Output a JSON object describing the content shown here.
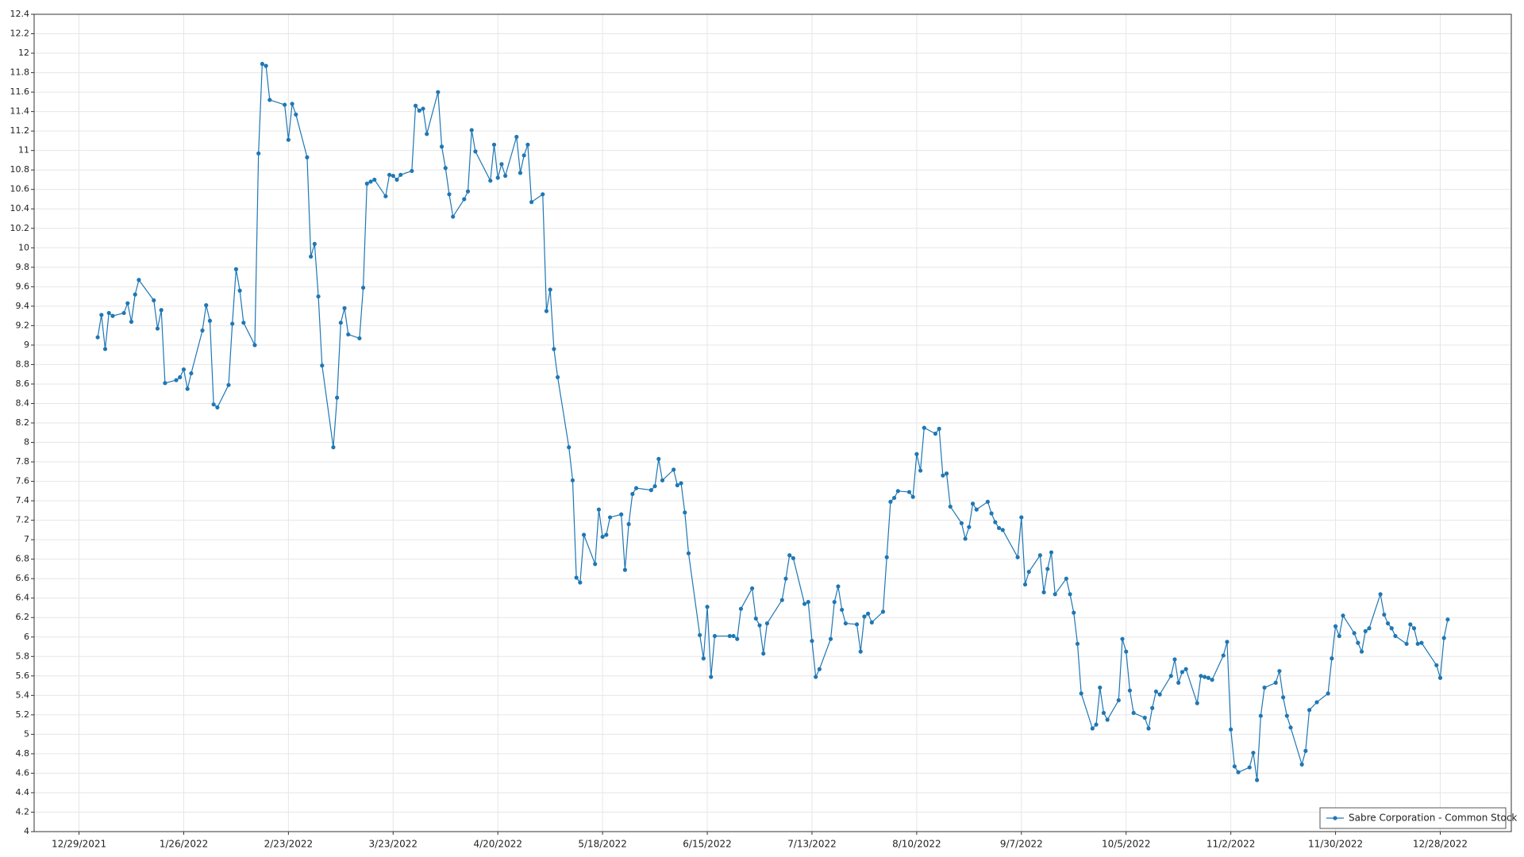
{
  "chart_data": {
    "type": "line",
    "x": [
      "1/3/2022",
      "1/4/2022",
      "1/5/2022",
      "1/6/2022",
      "1/7/2022",
      "1/10/2022",
      "1/11/2022",
      "1/12/2022",
      "1/13/2022",
      "1/14/2022",
      "1/18/2022",
      "1/19/2022",
      "1/20/2022",
      "1/21/2022",
      "1/24/2022",
      "1/25/2022",
      "1/26/2022",
      "1/27/2022",
      "1/28/2022",
      "1/31/2022",
      "2/1/2022",
      "2/2/2022",
      "2/3/2022",
      "2/4/2022",
      "2/7/2022",
      "2/8/2022",
      "2/9/2022",
      "2/10/2022",
      "2/11/2022",
      "2/14/2022",
      "2/15/2022",
      "2/16/2022",
      "2/17/2022",
      "2/18/2022",
      "2/22/2022",
      "2/23/2022",
      "2/24/2022",
      "2/25/2022",
      "2/28/2022",
      "3/1/2022",
      "3/2/2022",
      "3/3/2022",
      "3/4/2022",
      "3/7/2022",
      "3/8/2022",
      "3/9/2022",
      "3/10/2022",
      "3/11/2022",
      "3/14/2022",
      "3/15/2022",
      "3/16/2022",
      "3/17/2022",
      "3/18/2022",
      "3/21/2022",
      "3/22/2022",
      "3/23/2022",
      "3/24/2022",
      "3/25/2022",
      "3/28/2022",
      "3/29/2022",
      "3/30/2022",
      "3/31/2022",
      "4/1/2022",
      "4/4/2022",
      "4/5/2022",
      "4/6/2022",
      "4/7/2022",
      "4/8/2022",
      "4/11/2022",
      "4/12/2022",
      "4/13/2022",
      "4/14/2022",
      "4/18/2022",
      "4/19/2022",
      "4/20/2022",
      "4/21/2022",
      "4/22/2022",
      "4/25/2022",
      "4/26/2022",
      "4/27/2022",
      "4/28/2022",
      "4/29/2022",
      "5/2/2022",
      "5/3/2022",
      "5/4/2022",
      "5/5/2022",
      "5/6/2022",
      "5/9/2022",
      "5/10/2022",
      "5/11/2022",
      "5/12/2022",
      "5/13/2022",
      "5/16/2022",
      "5/17/2022",
      "5/18/2022",
      "5/19/2022",
      "5/20/2022",
      "5/23/2022",
      "5/24/2022",
      "5/25/2022",
      "5/26/2022",
      "5/27/2022",
      "5/31/2022",
      "6/1/2022",
      "6/2/2022",
      "6/3/2022",
      "6/6/2022",
      "6/7/2022",
      "6/8/2022",
      "6/9/2022",
      "6/10/2022",
      "6/13/2022",
      "6/14/2022",
      "6/15/2022",
      "6/16/2022",
      "6/17/2022",
      "6/21/2022",
      "6/22/2022",
      "6/23/2022",
      "6/24/2022",
      "6/27/2022",
      "6/28/2022",
      "6/29/2022",
      "6/30/2022",
      "7/1/2022",
      "7/5/2022",
      "7/6/2022",
      "7/7/2022",
      "7/8/2022",
      "7/11/2022",
      "7/12/2022",
      "7/13/2022",
      "7/14/2022",
      "7/15/2022",
      "7/18/2022",
      "7/19/2022",
      "7/20/2022",
      "7/21/2022",
      "7/22/2022",
      "7/25/2022",
      "7/26/2022",
      "7/27/2022",
      "7/28/2022",
      "7/29/2022",
      "8/1/2022",
      "8/2/2022",
      "8/3/2022",
      "8/4/2022",
      "8/5/2022",
      "8/8/2022",
      "8/9/2022",
      "8/10/2022",
      "8/11/2022",
      "8/12/2022",
      "8/15/2022",
      "8/16/2022",
      "8/17/2022",
      "8/18/2022",
      "8/19/2022",
      "8/22/2022",
      "8/23/2022",
      "8/24/2022",
      "8/25/2022",
      "8/26/2022",
      "8/29/2022",
      "8/30/2022",
      "8/31/2022",
      "9/1/2022",
      "9/2/2022",
      "9/6/2022",
      "9/7/2022",
      "9/8/2022",
      "9/9/2022",
      "9/12/2022",
      "9/13/2022",
      "9/14/2022",
      "9/15/2022",
      "9/16/2022",
      "9/19/2022",
      "9/20/2022",
      "9/21/2022",
      "9/22/2022",
      "9/23/2022",
      "9/26/2022",
      "9/27/2022",
      "9/28/2022",
      "9/29/2022",
      "9/30/2022",
      "10/3/2022",
      "10/4/2022",
      "10/5/2022",
      "10/6/2022",
      "10/7/2022",
      "10/10/2022",
      "10/11/2022",
      "10/12/2022",
      "10/13/2022",
      "10/14/2022",
      "10/17/2022",
      "10/18/2022",
      "10/19/2022",
      "10/20/2022",
      "10/21/2022",
      "10/24/2022",
      "10/25/2022",
      "10/26/2022",
      "10/27/2022",
      "10/28/2022",
      "10/31/2022",
      "11/1/2022",
      "11/2/2022",
      "11/3/2022",
      "11/4/2022",
      "11/7/2022",
      "11/8/2022",
      "11/9/2022",
      "11/10/2022",
      "11/11/2022",
      "11/14/2022",
      "11/15/2022",
      "11/16/2022",
      "11/17/2022",
      "11/18/2022",
      "11/21/2022",
      "11/22/2022",
      "11/23/2022",
      "11/25/2022",
      "11/28/2022",
      "11/29/2022",
      "11/30/2022",
      "12/1/2022",
      "12/2/2022",
      "12/5/2022",
      "12/6/2022",
      "12/7/2022",
      "12/8/2022",
      "12/9/2022",
      "12/12/2022",
      "12/13/2022",
      "12/14/2022",
      "12/15/2022",
      "12/16/2022",
      "12/19/2022",
      "12/20/2022",
      "12/21/2022",
      "12/22/2022",
      "12/23/2022",
      "12/27/2022",
      "12/28/2022",
      "12/29/2022",
      "12/30/2022"
    ],
    "series": [
      {
        "name": "Sabre Corporation - Common Stock",
        "color": "#1f77b4",
        "values": [
          9.08,
          9.31,
          8.96,
          9.33,
          9.3,
          9.33,
          9.43,
          9.24,
          9.52,
          9.67,
          9.46,
          9.17,
          9.36,
          8.61,
          8.64,
          8.67,
          8.75,
          8.55,
          8.71,
          9.15,
          9.41,
          9.25,
          8.39,
          8.36,
          8.59,
          9.22,
          9.78,
          9.56,
          9.23,
          9.0,
          10.97,
          11.89,
          11.87,
          11.52,
          11.47,
          11.11,
          11.48,
          11.37,
          10.93,
          9.91,
          10.04,
          9.5,
          8.79,
          7.95,
          8.46,
          9.23,
          9.38,
          9.11,
          9.07,
          9.59,
          10.66,
          10.68,
          10.7,
          10.53,
          10.75,
          10.74,
          10.7,
          10.75,
          10.79,
          11.46,
          11.41,
          11.43,
          11.17,
          11.6,
          11.04,
          10.82,
          10.55,
          10.32,
          10.5,
          10.58,
          11.21,
          10.99,
          10.69,
          11.06,
          10.72,
          10.86,
          10.74,
          11.14,
          10.77,
          10.95,
          11.06,
          10.47,
          10.55,
          9.35,
          9.57,
          8.96,
          8.67,
          7.95,
          7.61,
          6.61,
          6.56,
          7.05,
          6.75,
          7.31,
          7.03,
          7.05,
          7.23,
          7.26,
          6.69,
          7.16,
          7.47,
          7.53,
          7.51,
          7.55,
          7.83,
          7.61,
          7.72,
          7.56,
          7.58,
          7.28,
          6.86,
          6.02,
          5.78,
          6.31,
          5.59,
          6.01,
          6.01,
          6.01,
          5.98,
          6.29,
          6.5,
          6.19,
          6.12,
          5.83,
          6.14,
          6.38,
          6.6,
          6.84,
          6.81,
          6.34,
          6.36,
          5.96,
          5.59,
          5.67,
          5.98,
          6.36,
          6.52,
          6.28,
          6.14,
          6.13,
          5.85,
          6.21,
          6.24,
          6.15,
          6.26,
          6.82,
          7.39,
          7.43,
          7.5,
          7.49,
          7.44,
          7.88,
          7.71,
          8.15,
          8.09,
          8.14,
          7.66,
          7.68,
          7.34,
          7.17,
          7.01,
          7.13,
          7.37,
          7.31,
          7.39,
          7.27,
          7.18,
          7.12,
          7.1,
          6.82,
          7.23,
          6.54,
          6.67,
          6.84,
          6.46,
          6.7,
          6.87,
          6.44,
          6.6,
          6.44,
          6.25,
          5.93,
          5.42,
          5.06,
          5.1,
          5.48,
          5.22,
          5.15,
          5.35,
          5.98,
          5.85,
          5.45,
          5.22,
          5.17,
          5.06,
          5.27,
          5.44,
          5.41,
          5.6,
          5.77,
          5.53,
          5.64,
          5.67,
          5.32,
          5.6,
          5.59,
          5.58,
          5.56,
          5.81,
          5.95,
          5.05,
          4.67,
          4.61,
          4.66,
          4.81,
          4.53,
          5.19,
          5.48,
          5.53,
          5.65,
          5.38,
          5.19,
          5.07,
          4.69,
          4.83,
          5.25,
          5.33,
          5.42,
          5.78,
          6.11,
          6.01,
          6.22,
          6.04,
          5.94,
          5.85,
          6.06,
          6.09,
          6.44,
          6.23,
          6.14,
          6.09,
          6.01,
          5.93,
          6.13,
          6.09,
          5.93,
          5.94,
          5.71,
          5.58,
          5.99,
          6.18
        ]
      }
    ],
    "xlim": [
      "12/17/2021",
      "1/16/2023"
    ],
    "xticks": [
      "12/29/2021",
      "1/26/2022",
      "2/23/2022",
      "3/23/2022",
      "4/20/2022",
      "5/18/2022",
      "6/15/2022",
      "7/13/2022",
      "8/10/2022",
      "9/7/2022",
      "10/5/2022",
      "11/2/2022",
      "11/30/2022",
      "12/28/2022"
    ],
    "ylim": [
      4,
      12.4
    ],
    "yticks": [
      4,
      4.2,
      4.4,
      4.6,
      4.8,
      5,
      5.2,
      5.4,
      5.6,
      5.8,
      6,
      6.2,
      6.4,
      6.6,
      6.8,
      7,
      7.2,
      7.4,
      7.6,
      7.8,
      8,
      8.2,
      8.4,
      8.6,
      8.8,
      9,
      9.2,
      9.4,
      9.6,
      9.8,
      10,
      10.2,
      10.4,
      10.6,
      10.8,
      11,
      11.2,
      11.4,
      11.6,
      11.8,
      12,
      12.2,
      12.4
    ],
    "grid": true,
    "legend": "lower right",
    "markers": true
  }
}
